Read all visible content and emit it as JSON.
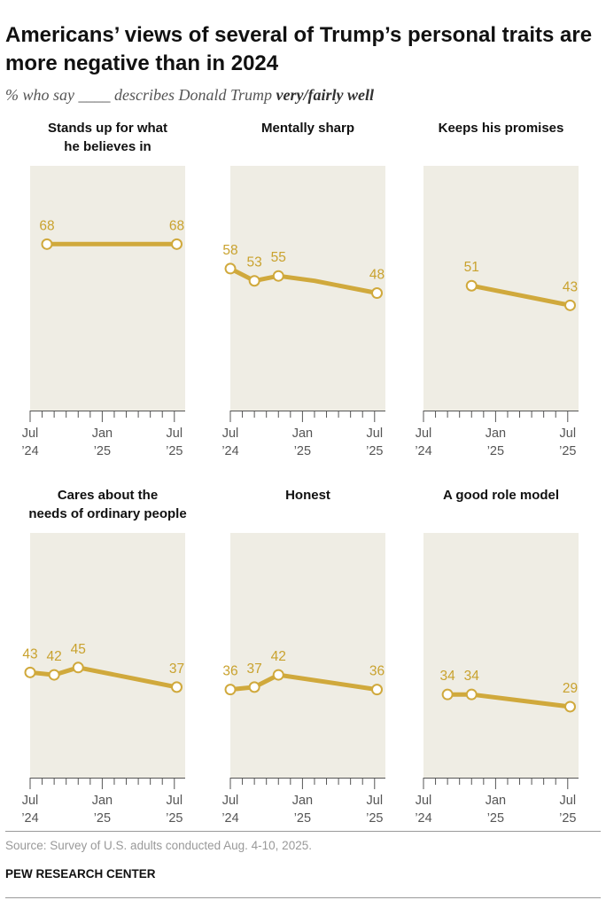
{
  "title": "Americans’ views of several of Trump’s personal traits are more negative than in 2024",
  "subtitle_pre": "% who say ",
  "subtitle_blank": "____",
  "subtitle_mid": " describes Donald Trump ",
  "subtitle_bold": "very/fairly well",
  "source": "Source: Survey of U.S. adults conducted Aug. 4-10, 2025.",
  "organization": "PEW RESEARCH CENTER",
  "colors": {
    "line": "#d0a93c",
    "label": "#c9a22e",
    "panel_bg": "#efede4",
    "axis": "#555555"
  },
  "chart_data": [
    {
      "type": "line",
      "title": "Stands up for what he believes in",
      "title_lines": [
        "Stands up for what",
        "he believes in"
      ],
      "x": [
        1.4,
        12.2
      ],
      "values": [
        68,
        68
      ],
      "labels": [
        "68",
        "68"
      ],
      "tick_labels": [
        {
          "label": "Jul",
          "sub": "’24",
          "x": 0
        },
        {
          "label": "Jan",
          "sub": "’25",
          "x": 6
        },
        {
          "label": "Jul",
          "sub": "’25",
          "x": 12
        }
      ],
      "xlim": [
        0,
        12.9
      ],
      "ylim": [
        0,
        100
      ]
    },
    {
      "type": "line",
      "title": "Mentally sharp",
      "title_lines": [
        "Mentally sharp"
      ],
      "x": [
        0,
        2,
        4,
        7,
        12.2
      ],
      "values": [
        58,
        53,
        55,
        null,
        48
      ],
      "path_values": [
        58,
        53,
        55,
        53,
        48
      ],
      "labels": [
        "58",
        "53",
        "55",
        "",
        "48"
      ],
      "tick_labels": [
        {
          "label": "Jul",
          "sub": "’24",
          "x": 0
        },
        {
          "label": "Jan",
          "sub": "’25",
          "x": 6
        },
        {
          "label": "Jul",
          "sub": "’25",
          "x": 12
        }
      ],
      "xlim": [
        0,
        12.9
      ],
      "ylim": [
        0,
        100
      ]
    },
    {
      "type": "line",
      "title": "Keeps his promises",
      "title_lines": [
        "Keeps his promises"
      ],
      "x": [
        4,
        12.2
      ],
      "values": [
        51,
        43
      ],
      "labels": [
        "51",
        "43"
      ],
      "tick_labels": [
        {
          "label": "Jul",
          "sub": "’24",
          "x": 0
        },
        {
          "label": "Jan",
          "sub": "’25",
          "x": 6
        },
        {
          "label": "Jul",
          "sub": "’25",
          "x": 12
        }
      ],
      "xlim": [
        0,
        12.9
      ],
      "ylim": [
        0,
        100
      ]
    },
    {
      "type": "line",
      "title": "Cares about the needs of ordinary people",
      "title_lines": [
        "Cares about the",
        "needs of ordinary people"
      ],
      "x": [
        0,
        2,
        4,
        12.2
      ],
      "values": [
        43,
        42,
        45,
        37
      ],
      "labels": [
        "43",
        "42",
        "45",
        "37"
      ],
      "tick_labels": [
        {
          "label": "Jul",
          "sub": "’24",
          "x": 0
        },
        {
          "label": "Jan",
          "sub": "’25",
          "x": 6
        },
        {
          "label": "Jul",
          "sub": "’25",
          "x": 12
        }
      ],
      "xlim": [
        0,
        12.9
      ],
      "ylim": [
        0,
        100
      ]
    },
    {
      "type": "line",
      "title": "Honest",
      "title_lines": [
        "Honest"
      ],
      "x": [
        0,
        2,
        4,
        12.2
      ],
      "values": [
        36,
        37,
        42,
        36
      ],
      "labels": [
        "36",
        "37",
        "42",
        "36"
      ],
      "tick_labels": [
        {
          "label": "Jul",
          "sub": "’24",
          "x": 0
        },
        {
          "label": "Jan",
          "sub": "’25",
          "x": 6
        },
        {
          "label": "Jul",
          "sub": "’25",
          "x": 12
        }
      ],
      "xlim": [
        0,
        12.9
      ],
      "ylim": [
        0,
        100
      ]
    },
    {
      "type": "line",
      "title": "A good role model",
      "title_lines": [
        "A good role model"
      ],
      "x": [
        2,
        4,
        12.2
      ],
      "values": [
        34,
        34,
        29
      ],
      "labels": [
        "34",
        "34",
        "29"
      ],
      "tick_labels": [
        {
          "label": "Jul",
          "sub": "’24",
          "x": 0
        },
        {
          "label": "Jan",
          "sub": "’25",
          "x": 6
        },
        {
          "label": "Jul",
          "sub": "’25",
          "x": 12
        }
      ],
      "xlim": [
        0,
        12.9
      ],
      "ylim": [
        0,
        100
      ]
    }
  ]
}
